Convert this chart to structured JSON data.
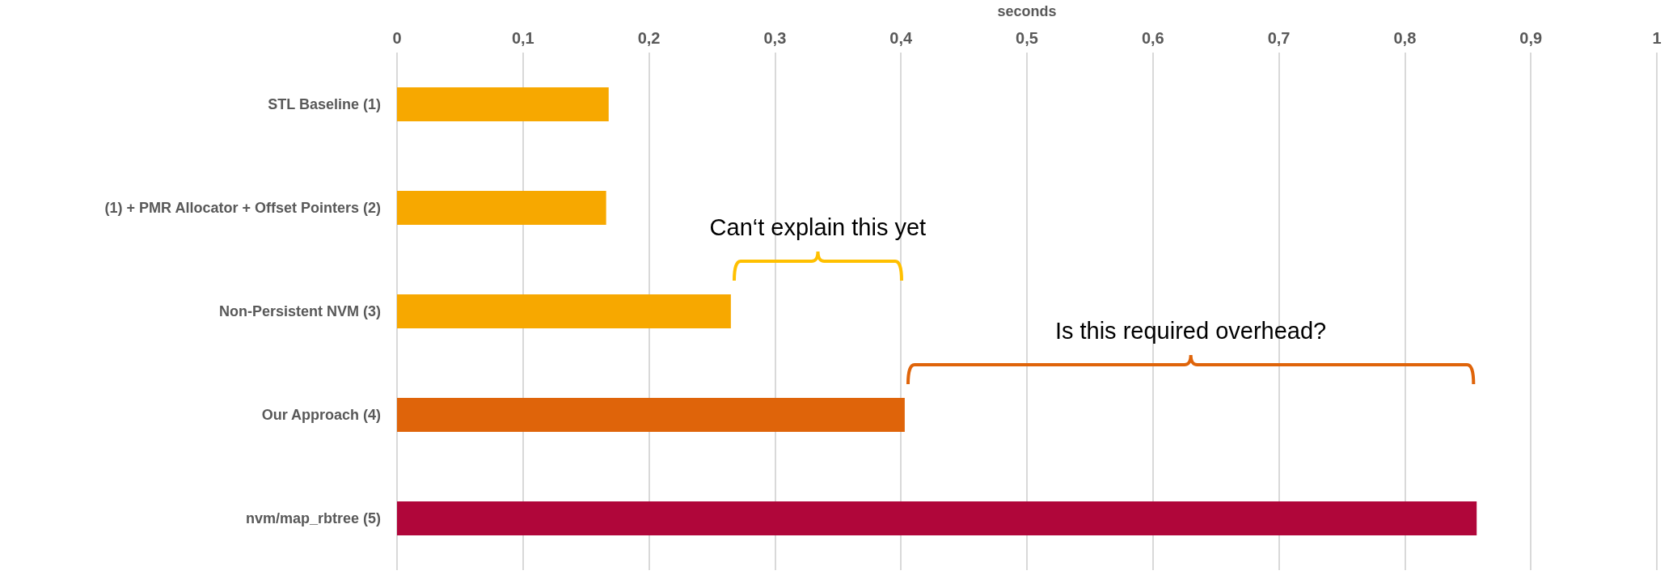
{
  "chart_data": {
    "type": "bar",
    "orientation": "horizontal",
    "xlabel": "seconds",
    "categories": [
      "STL Baseline (1)",
      "(1) + PMR Allocator + Offset Pointers (2)",
      "Non-Persistent NVM (3)",
      "Our Approach (4)",
      "nvm/map_rbtree (5)"
    ],
    "values": [
      0.168,
      0.166,
      0.265,
      0.403,
      0.857
    ],
    "colors": [
      "#f7a800",
      "#f7a800",
      "#f7a800",
      "#df640a",
      "#b0063a"
    ],
    "xlim": [
      0,
      1
    ],
    "xticks": [
      0,
      {
        "value": 0.1,
        "label": "0,1"
      },
      {
        "value": 0.2,
        "label": "0,2"
      },
      {
        "value": 0.3,
        "label": "0,3"
      },
      {
        "value": 0.4,
        "label": "0,4"
      },
      {
        "value": 0.5,
        "label": "0,5"
      },
      {
        "value": 0.6,
        "label": "0,6"
      },
      {
        "value": 0.7,
        "label": "0,7"
      },
      {
        "value": 0.8,
        "label": "0,8"
      },
      {
        "value": 0.9,
        "label": "0,9"
      },
      1
    ],
    "grid": "x",
    "annotations": [
      "Can‘t explain this yet",
      "Is this required overhead?"
    ]
  }
}
